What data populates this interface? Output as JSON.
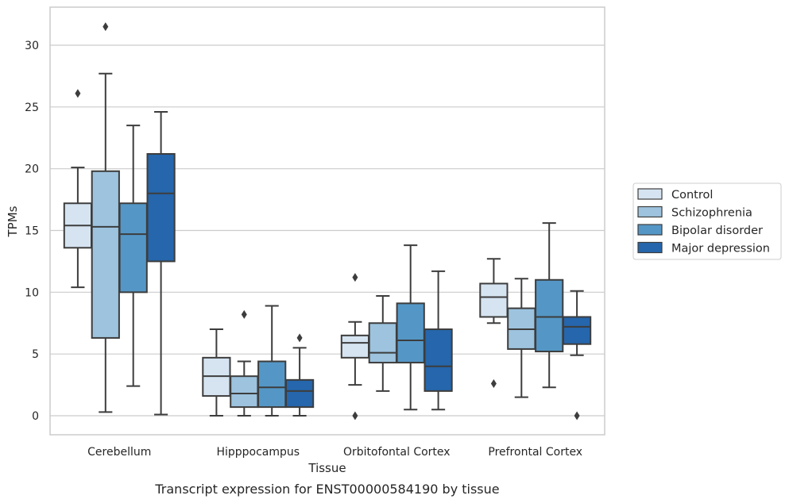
{
  "caption": "Transcript expression for ENST00000584190 by tissue",
  "chart_data": {
    "type": "box",
    "xlabel": "Tissue",
    "ylabel": "TPMs",
    "ylim": [
      -1.5,
      33
    ],
    "yticks": [
      0,
      5,
      10,
      15,
      20,
      25,
      30
    ],
    "grid": "horizontal",
    "legend_position": "right",
    "categories": [
      "Cerebellum",
      "Hipppocampus",
      "Orbitofontal Cortex",
      "Prefrontal Cortex"
    ],
    "series": [
      {
        "name": "Control",
        "color": "#d6e4f1",
        "boxes": [
          {
            "whislo": 10.4,
            "q1": 13.6,
            "med": 15.4,
            "q3": 17.2,
            "whishi": 20.1,
            "fliers": [
              26.1
            ]
          },
          {
            "whislo": 0.0,
            "q1": 1.6,
            "med": 3.2,
            "q3": 4.7,
            "whishi": 7.0,
            "fliers": []
          },
          {
            "whislo": 2.5,
            "q1": 4.7,
            "med": 5.9,
            "q3": 6.5,
            "whishi": 7.6,
            "fliers": [
              11.2,
              0.0
            ]
          },
          {
            "whislo": 7.5,
            "q1": 8.0,
            "med": 9.6,
            "q3": 10.7,
            "whishi": 12.7,
            "fliers": [
              2.6
            ]
          }
        ]
      },
      {
        "name": "Schizophrenia",
        "color": "#9dc3de",
        "boxes": [
          {
            "whislo": 0.3,
            "q1": 6.3,
            "med": 15.3,
            "q3": 19.8,
            "whishi": 27.7,
            "fliers": [
              31.5
            ]
          },
          {
            "whislo": 0.0,
            "q1": 0.7,
            "med": 1.8,
            "q3": 3.2,
            "whishi": 4.4,
            "fliers": [
              8.2
            ]
          },
          {
            "whislo": 2.0,
            "q1": 4.3,
            "med": 5.1,
            "q3": 7.5,
            "whishi": 9.7,
            "fliers": []
          },
          {
            "whislo": 1.5,
            "q1": 5.4,
            "med": 7.0,
            "q3": 8.7,
            "whishi": 11.1,
            "fliers": []
          }
        ]
      },
      {
        "name": "Bipolar disorder",
        "color": "#5497c6",
        "boxes": [
          {
            "whislo": 2.4,
            "q1": 10.0,
            "med": 14.7,
            "q3": 17.2,
            "whishi": 23.5,
            "fliers": []
          },
          {
            "whislo": 0.0,
            "q1": 0.7,
            "med": 2.3,
            "q3": 4.4,
            "whishi": 8.9,
            "fliers": []
          },
          {
            "whislo": 0.5,
            "q1": 4.3,
            "med": 6.1,
            "q3": 9.1,
            "whishi": 13.8,
            "fliers": []
          },
          {
            "whislo": 2.3,
            "q1": 5.2,
            "med": 8.0,
            "q3": 11.0,
            "whishi": 15.6,
            "fliers": []
          }
        ]
      },
      {
        "name": "Major depression",
        "color": "#2566ac",
        "boxes": [
          {
            "whislo": 0.1,
            "q1": 12.5,
            "med": 18.0,
            "q3": 21.2,
            "whishi": 24.6,
            "fliers": []
          },
          {
            "whislo": 0.0,
            "q1": 0.7,
            "med": 2.0,
            "q3": 2.9,
            "whishi": 5.5,
            "fliers": [
              6.3
            ]
          },
          {
            "whislo": 0.5,
            "q1": 2.0,
            "med": 4.0,
            "q3": 7.0,
            "whishi": 11.7,
            "fliers": []
          },
          {
            "whislo": 4.9,
            "q1": 5.8,
            "med": 7.2,
            "q3": 8.0,
            "whishi": 10.1,
            "fliers": [
              0.0
            ]
          }
        ]
      }
    ]
  }
}
